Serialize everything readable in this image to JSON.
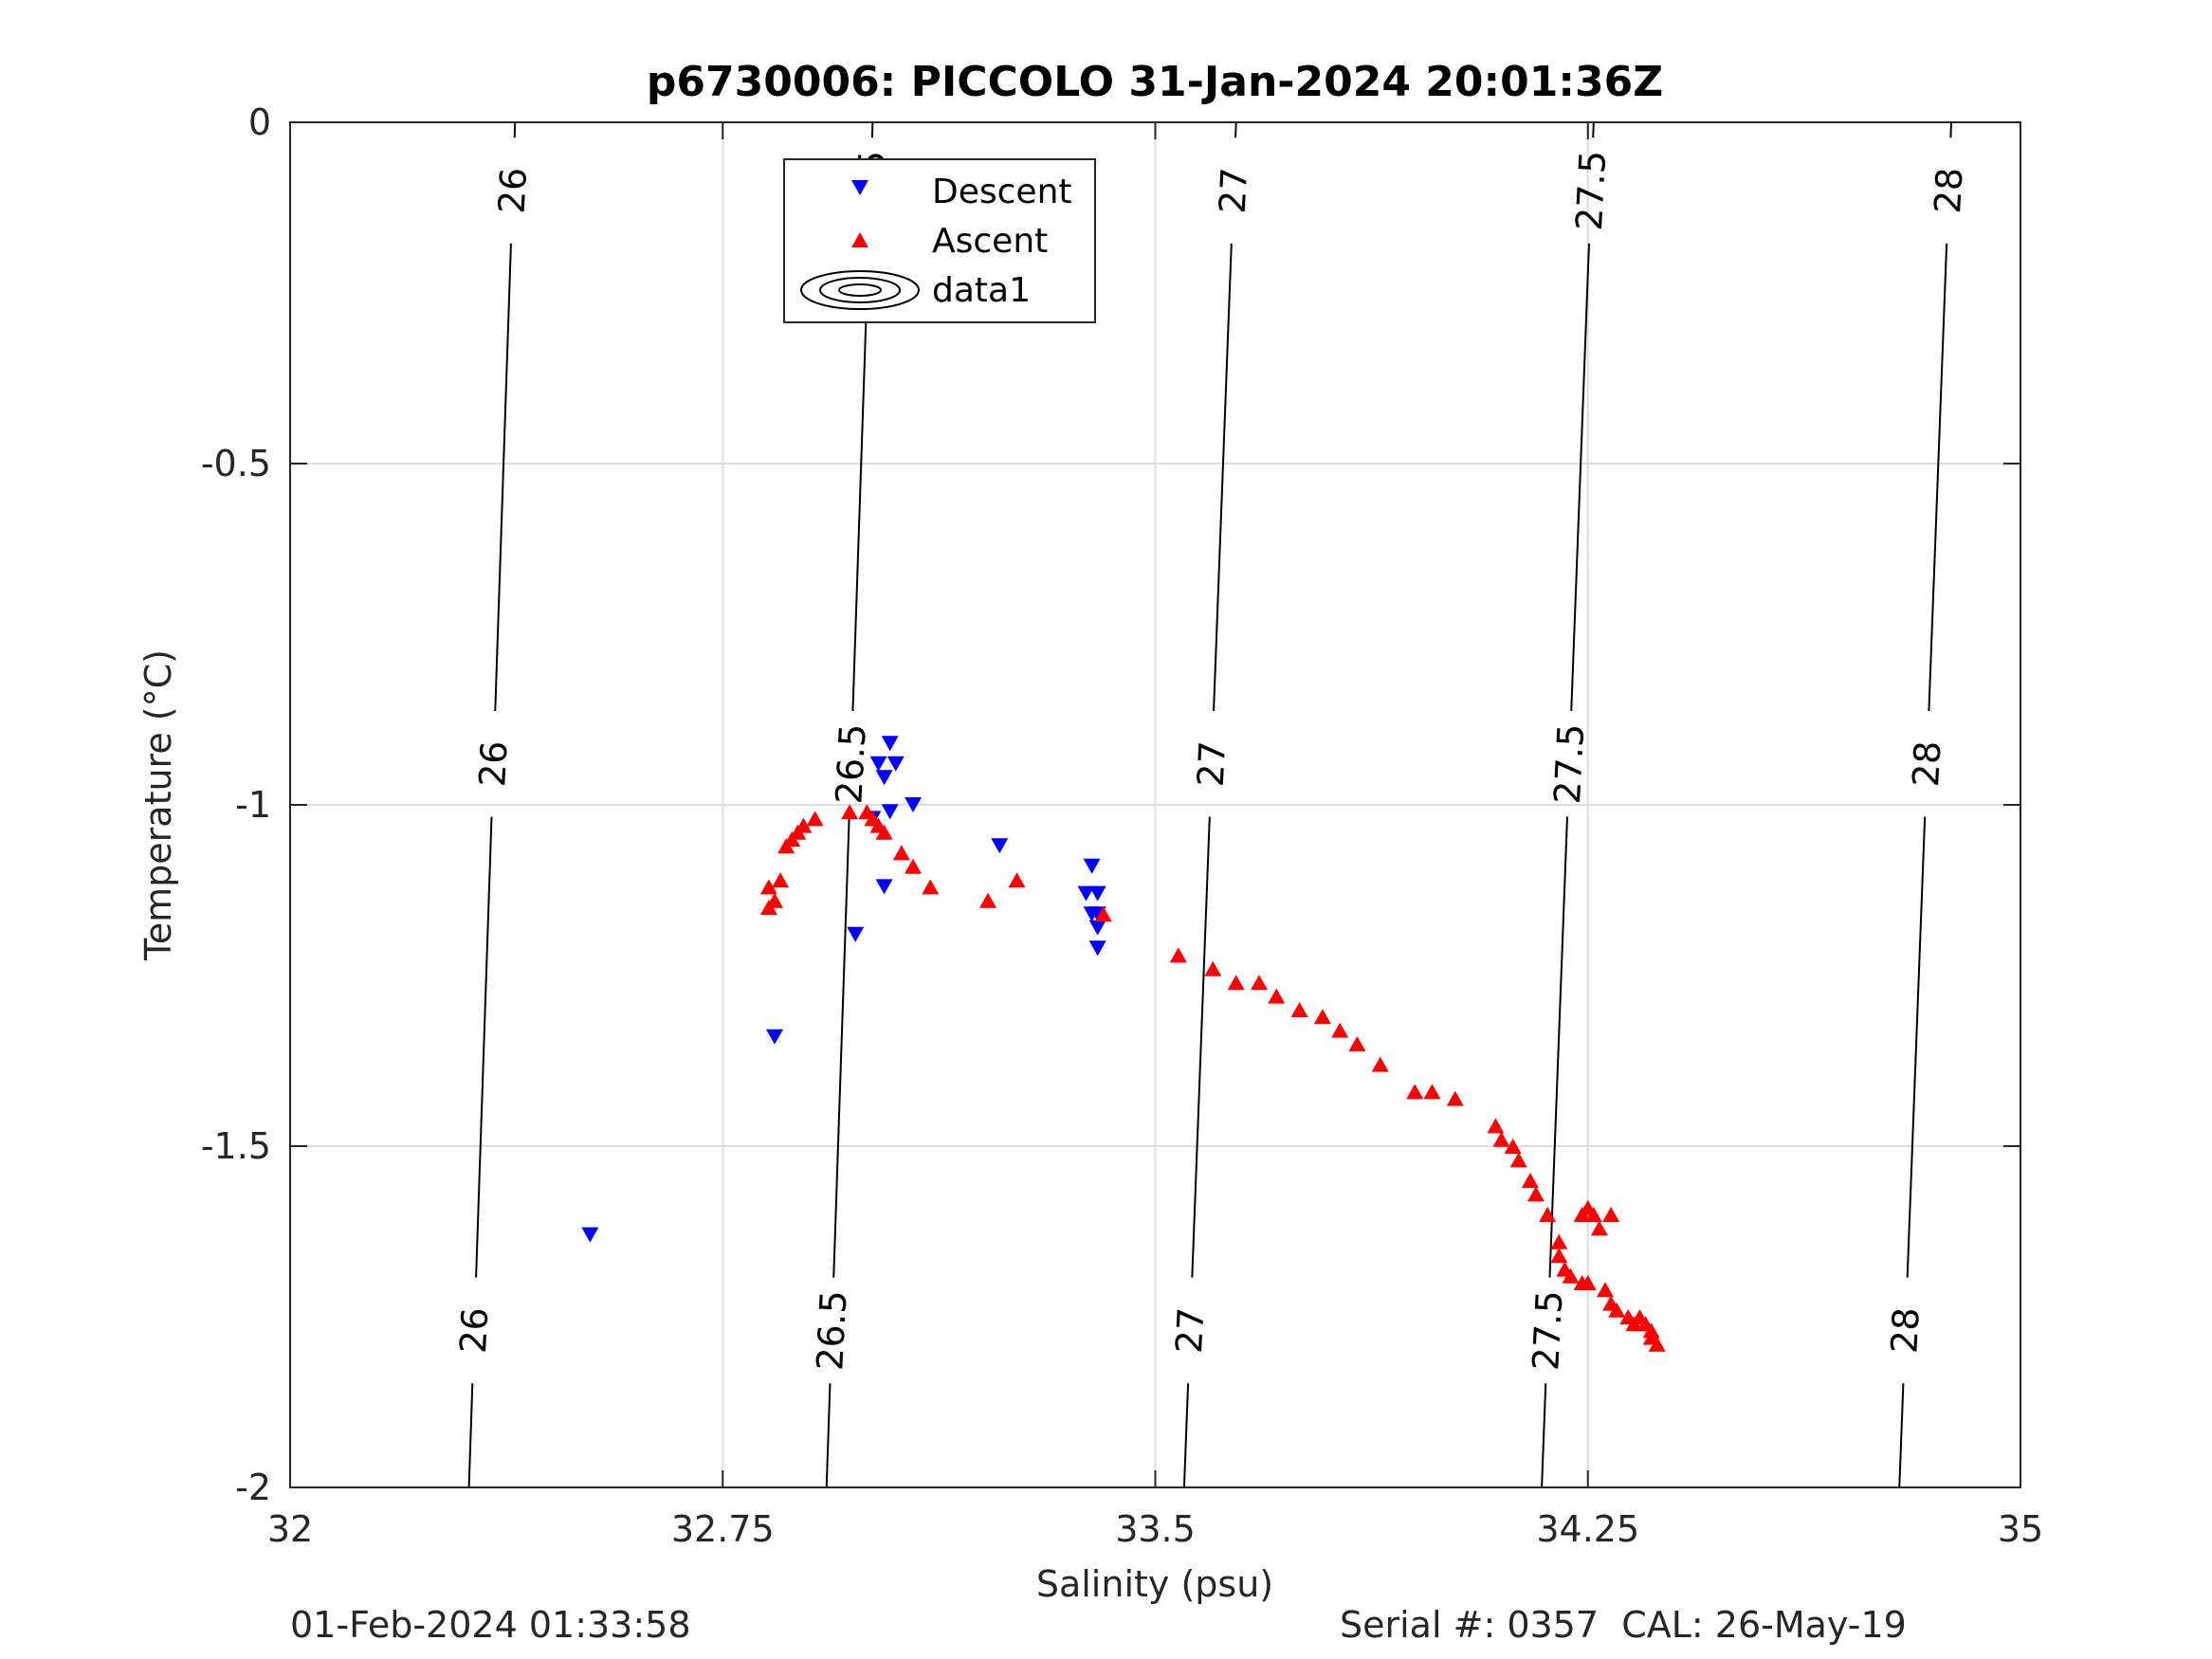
{
  "chart_data": {
    "type": "scatter",
    "title": "p6730006: PICCOLO 31-Jan-2024 20:01:36Z",
    "xlabel": "Salinity (psu)",
    "ylabel": "Temperature (°C)",
    "xlim": [
      32,
      35
    ],
    "ylim": [
      -2,
      0
    ],
    "xticks": [
      32,
      32.75,
      33.5,
      34.25,
      35
    ],
    "xtick_labels": [
      "32",
      "32.75",
      "33.5",
      "34.25",
      "35"
    ],
    "yticks": [
      0,
      -0.5,
      -1,
      -1.5,
      -2
    ],
    "ytick_labels": [
      "0",
      "-0.5",
      "-1",
      "-1.5",
      "-2"
    ],
    "grid": true,
    "legend_position": "top-inside-left-of-center",
    "legend": [
      {
        "label": "Descent",
        "marker": "triangle-down",
        "color": "#0000ff"
      },
      {
        "label": "Ascent",
        "marker": "triangle-up",
        "color": "#ff0000"
      },
      {
        "label": "data1",
        "marker": "contour",
        "color": "#000000"
      }
    ],
    "series": [
      {
        "name": "Descent",
        "marker": "triangle-down",
        "color": "#0000ff",
        "points": [
          [
            32.52,
            -1.63
          ],
          [
            32.84,
            -1.34
          ],
          [
            32.98,
            -1.19
          ],
          [
            33.04,
            -0.91
          ],
          [
            33.05,
            -0.94
          ],
          [
            33.02,
            -0.94
          ],
          [
            33.03,
            -0.96
          ],
          [
            33.08,
            -1.0
          ],
          [
            33.04,
            -1.01
          ],
          [
            33.01,
            -1.02
          ],
          [
            33.03,
            -1.12
          ],
          [
            33.23,
            -1.06
          ],
          [
            33.38,
            -1.13
          ],
          [
            33.39,
            -1.09
          ],
          [
            33.4,
            -1.13
          ],
          [
            33.39,
            -1.16
          ],
          [
            33.4,
            -1.16
          ],
          [
            33.4,
            -1.18
          ],
          [
            33.4,
            -1.21
          ]
        ]
      },
      {
        "name": "Ascent",
        "marker": "triangle-up",
        "color": "#ff0000",
        "points": [
          [
            32.83,
            -1.15
          ],
          [
            32.83,
            -1.12
          ],
          [
            32.84,
            -1.14
          ],
          [
            32.85,
            -1.11
          ],
          [
            32.86,
            -1.06
          ],
          [
            32.87,
            -1.05
          ],
          [
            32.88,
            -1.04
          ],
          [
            32.89,
            -1.03
          ],
          [
            32.91,
            -1.02
          ],
          [
            32.97,
            -1.01
          ],
          [
            33.0,
            -1.01
          ],
          [
            33.01,
            -1.02
          ],
          [
            33.02,
            -1.03
          ],
          [
            33.03,
            -1.04
          ],
          [
            33.06,
            -1.07
          ],
          [
            33.08,
            -1.09
          ],
          [
            33.11,
            -1.12
          ],
          [
            33.21,
            -1.14
          ],
          [
            33.26,
            -1.11
          ],
          [
            33.41,
            -1.16
          ],
          [
            33.54,
            -1.22
          ],
          [
            33.6,
            -1.24
          ],
          [
            33.64,
            -1.26
          ],
          [
            33.68,
            -1.26
          ],
          [
            33.71,
            -1.28
          ],
          [
            33.75,
            -1.3
          ],
          [
            33.79,
            -1.31
          ],
          [
            33.82,
            -1.33
          ],
          [
            33.85,
            -1.35
          ],
          [
            33.89,
            -1.38
          ],
          [
            33.95,
            -1.42
          ],
          [
            33.98,
            -1.42
          ],
          [
            34.02,
            -1.43
          ],
          [
            34.09,
            -1.47
          ],
          [
            34.1,
            -1.49
          ],
          [
            34.12,
            -1.5
          ],
          [
            34.13,
            -1.52
          ],
          [
            34.15,
            -1.55
          ],
          [
            34.16,
            -1.57
          ],
          [
            34.18,
            -1.6
          ],
          [
            34.2,
            -1.64
          ],
          [
            34.2,
            -1.66
          ],
          [
            34.21,
            -1.68
          ],
          [
            34.22,
            -1.69
          ],
          [
            34.24,
            -1.7
          ],
          [
            34.25,
            -1.7
          ],
          [
            34.24,
            -1.6
          ],
          [
            34.25,
            -1.59
          ],
          [
            34.26,
            -1.6
          ],
          [
            34.27,
            -1.62
          ],
          [
            34.29,
            -1.6
          ],
          [
            34.28,
            -1.71
          ],
          [
            34.29,
            -1.73
          ],
          [
            34.3,
            -1.74
          ],
          [
            34.32,
            -1.75
          ],
          [
            34.33,
            -1.76
          ],
          [
            34.34,
            -1.75
          ],
          [
            34.35,
            -1.76
          ],
          [
            34.36,
            -1.77
          ],
          [
            34.36,
            -1.78
          ],
          [
            34.37,
            -1.79
          ]
        ]
      }
    ],
    "density_contours": {
      "name": "data1",
      "color": "#000000",
      "levels": [
        "26",
        "26.5",
        "27",
        "27.5",
        "28"
      ],
      "lines": [
        {
          "label": "26",
          "top_salinity": 32.39,
          "bottom_salinity": 32.31
        },
        {
          "label": "26.5",
          "top_salinity": 33.01,
          "bottom_salinity": 32.93
        },
        {
          "label": "27",
          "top_salinity": 33.64,
          "bottom_salinity": 33.55
        },
        {
          "label": "27.5",
          "top_salinity": 34.26,
          "bottom_salinity": 34.17
        },
        {
          "label": "28",
          "top_salinity": 34.88,
          "bottom_salinity": 34.79
        }
      ],
      "label_temperatures": [
        -0.1,
        -0.94,
        -1.77
      ]
    }
  },
  "footer": {
    "timestamp": "01-Feb-2024 01:33:58",
    "serial": "Serial #: 0357  CAL: 26-May-19"
  }
}
